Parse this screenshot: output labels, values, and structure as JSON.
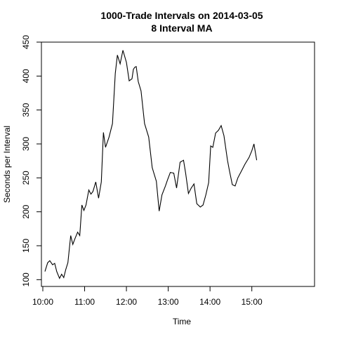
{
  "chart_data": {
    "type": "line",
    "title": "1000-Trade Intervals on 2014-03-05",
    "subtitle": "8 Interval MA",
    "xlabel": "Time",
    "ylabel": "Seconds per Interval",
    "xlim": [
      "09:58",
      "16:30"
    ],
    "ylim": [
      90,
      450
    ],
    "x_ticks": [
      "10:00",
      "11:00",
      "12:00",
      "13:00",
      "14:00",
      "15:00"
    ],
    "y_ticks": [
      100,
      150,
      200,
      250,
      300,
      350,
      400,
      450
    ],
    "grid": false,
    "legend": "none",
    "line_color": "#000000",
    "series": [
      {
        "x": [
          "10:03",
          "10:07",
          "10:10",
          "10:14",
          "10:17",
          "10:20",
          "10:24",
          "10:27",
          "10:30",
          "10:33",
          "10:36",
          "10:40",
          "10:43",
          "10:46",
          "10:50",
          "10:53",
          "10:56",
          "10:59",
          "11:02",
          "11:06",
          "11:09",
          "11:12",
          "11:16",
          "11:20",
          "11:24",
          "11:27",
          "11:30",
          "11:35",
          "11:40",
          "11:44",
          "11:47",
          "11:51",
          "11:55",
          "12:00",
          "12:04",
          "12:08",
          "12:10",
          "12:12",
          "12:14",
          "12:17",
          "12:21",
          "12:26",
          "12:32",
          "12:37",
          "12:43",
          "12:47",
          "12:51",
          "12:56",
          "12:59",
          "13:03",
          "13:08",
          "13:12",
          "13:17",
          "13:22",
          "13:25",
          "13:29",
          "13:33",
          "13:37",
          "13:41",
          "13:46",
          "13:50",
          "13:54",
          "13:58",
          "14:01",
          "14:04",
          "14:08",
          "14:12",
          "14:16",
          "14:20",
          "14:25",
          "14:28",
          "14:32",
          "14:36",
          "14:40",
          "14:45",
          "14:50",
          "14:56",
          "15:00",
          "15:03",
          "15:07"
        ],
        "y": [
          112,
          125,
          128,
          122,
          124,
          112,
          102,
          108,
          103,
          115,
          125,
          165,
          152,
          160,
          170,
          165,
          210,
          202,
          210,
          232,
          226,
          230,
          244,
          220,
          244,
          317,
          295,
          310,
          330,
          404,
          431,
          418,
          438,
          420,
          393,
          396,
          410,
          413,
          414,
          392,
          378,
          330,
          310,
          265,
          245,
          201,
          225,
          238,
          247,
          258,
          257,
          235,
          273,
          276,
          257,
          227,
          235,
          241,
          212,
          207,
          210,
          225,
          243,
          297,
          295,
          316,
          320,
          327,
          312,
          276,
          260,
          240,
          238,
          250,
          260,
          270,
          280,
          290,
          300,
          276
        ],
        "name": ""
      }
    ]
  }
}
